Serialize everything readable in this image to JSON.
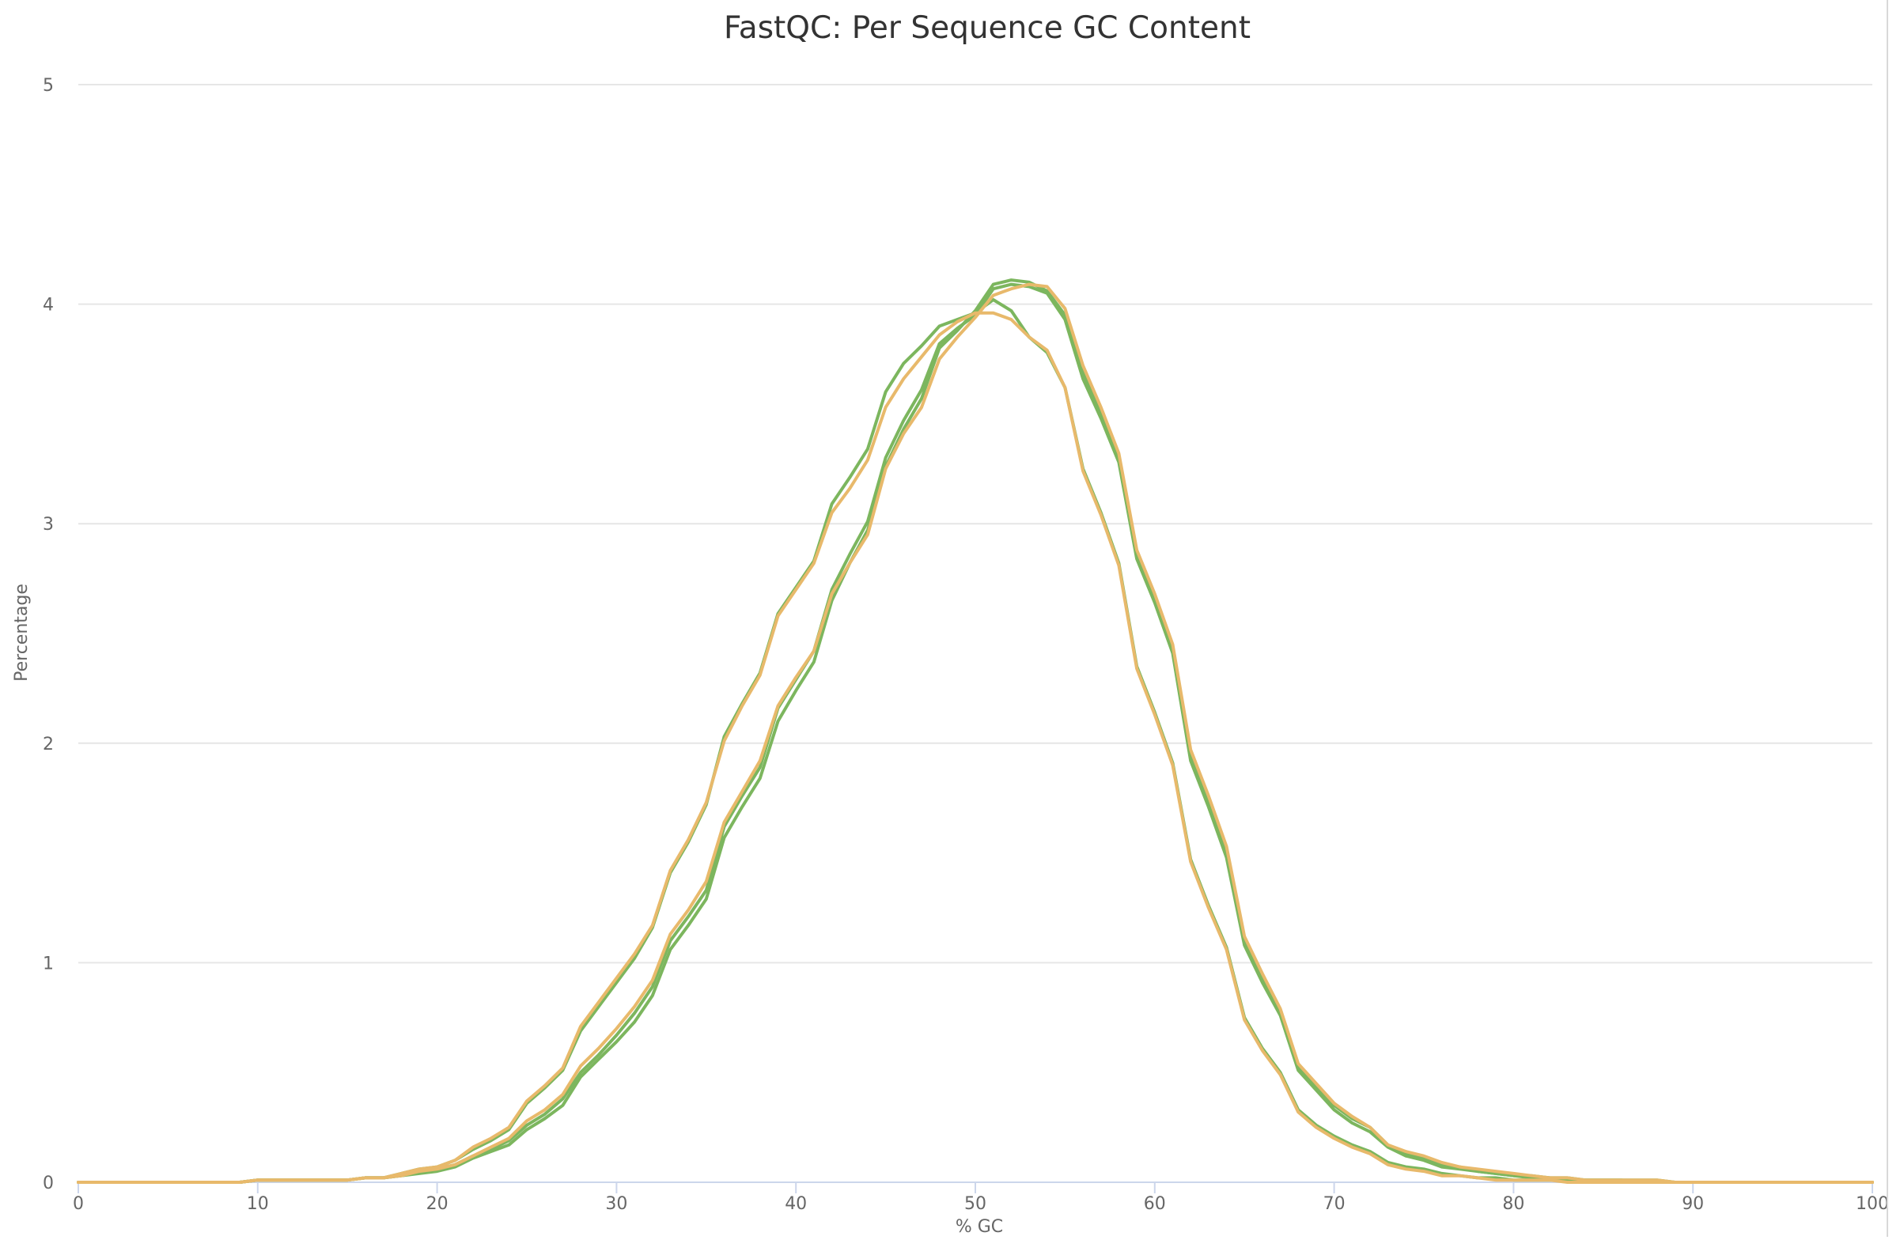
{
  "chart_data": {
    "type": "line",
    "title": "FastQC: Per Sequence GC Content",
    "xlabel": "% GC",
    "ylabel": "Percentage",
    "xlim": [
      0,
      100
    ],
    "ylim": [
      0,
      5
    ],
    "x_ticks": [
      0,
      10,
      20,
      30,
      40,
      50,
      60,
      70,
      80,
      90,
      100
    ],
    "y_ticks": [
      0,
      1,
      2,
      3,
      4,
      5
    ],
    "grid": true,
    "legend": "none",
    "x": [
      0,
      1,
      2,
      3,
      4,
      5,
      6,
      7,
      8,
      9,
      10,
      11,
      12,
      13,
      14,
      15,
      16,
      17,
      18,
      19,
      20,
      21,
      22,
      23,
      24,
      25,
      26,
      27,
      28,
      29,
      30,
      31,
      32,
      33,
      34,
      35,
      36,
      37,
      38,
      39,
      40,
      41,
      42,
      43,
      44,
      45,
      46,
      47,
      48,
      49,
      50,
      51,
      52,
      53,
      54,
      55,
      56,
      57,
      58,
      59,
      60,
      61,
      62,
      63,
      64,
      65,
      66,
      67,
      68,
      69,
      70,
      71,
      72,
      73,
      74,
      75,
      76,
      77,
      78,
      79,
      80,
      81,
      82,
      83,
      84,
      85,
      86,
      87,
      88,
      89,
      90,
      91,
      92,
      93,
      94,
      95,
      96,
      97,
      98,
      99,
      100
    ],
    "series": [
      {
        "color": "#7cb65e",
        "values": [
          0,
          0,
          0,
          0,
          0,
          0,
          0,
          0,
          0,
          0,
          0.01,
          0.01,
          0.01,
          0.01,
          0.01,
          0.01,
          0.02,
          0.02,
          0.03,
          0.04,
          0.05,
          0.07,
          0.11,
          0.14,
          0.17,
          0.24,
          0.29,
          0.35,
          0.48,
          0.56,
          0.64,
          0.73,
          0.85,
          1.06,
          1.17,
          1.29,
          1.57,
          1.71,
          1.84,
          2.1,
          2.24,
          2.37,
          2.65,
          2.82,
          2.97,
          3.26,
          3.43,
          3.57,
          3.8,
          3.88,
          3.97,
          4.09,
          4.11,
          4.1,
          4.06,
          3.95,
          3.69,
          3.51,
          3.31,
          2.87,
          2.67,
          2.44,
          1.95,
          1.74,
          1.51,
          1.1,
          0.93,
          0.78,
          0.53,
          0.44,
          0.35,
          0.29,
          0.25,
          0.17,
          0.13,
          0.11,
          0.08,
          0.07,
          0.05,
          0.04,
          0.03,
          0.03,
          0.02,
          0.02,
          0.01,
          0.01,
          0.01,
          0.01,
          0.01,
          0,
          0,
          0,
          0,
          0,
          0,
          0,
          0,
          0,
          0,
          0,
          0
        ]
      },
      {
        "color": "#7cb65e",
        "values": [
          0,
          0,
          0,
          0,
          0,
          0,
          0,
          0,
          0,
          0,
          0.01,
          0.01,
          0.01,
          0.01,
          0.01,
          0.01,
          0.02,
          0.02,
          0.03,
          0.05,
          0.06,
          0.08,
          0.12,
          0.15,
          0.19,
          0.26,
          0.31,
          0.38,
          0.5,
          0.58,
          0.67,
          0.77,
          0.89,
          1.1,
          1.21,
          1.33,
          1.62,
          1.76,
          1.89,
          2.16,
          2.29,
          2.42,
          2.7,
          2.86,
          3.01,
          3.3,
          3.47,
          3.61,
          3.82,
          3.89,
          3.95,
          4.07,
          4.09,
          4.08,
          4.05,
          3.93,
          3.66,
          3.48,
          3.28,
          2.84,
          2.64,
          2.41,
          1.92,
          1.71,
          1.48,
          1.08,
          0.91,
          0.76,
          0.51,
          0.42,
          0.33,
          0.27,
          0.23,
          0.16,
          0.12,
          0.1,
          0.07,
          0.06,
          0.05,
          0.04,
          0.03,
          0.02,
          0.02,
          0.01,
          0.01,
          0.01,
          0.01,
          0,
          0,
          0,
          0,
          0,
          0,
          0,
          0,
          0,
          0,
          0,
          0,
          0,
          0
        ]
      },
      {
        "color": "#7cb65e",
        "values": [
          0,
          0,
          0,
          0,
          0,
          0,
          0,
          0,
          0,
          0,
          0.01,
          0.01,
          0.01,
          0.01,
          0.01,
          0.01,
          0.02,
          0.02,
          0.04,
          0.06,
          0.07,
          0.1,
          0.15,
          0.19,
          0.24,
          0.36,
          0.43,
          0.51,
          0.69,
          0.8,
          0.91,
          1.02,
          1.16,
          1.41,
          1.55,
          1.72,
          2.03,
          2.18,
          2.32,
          2.59,
          2.71,
          2.83,
          3.09,
          3.21,
          3.34,
          3.6,
          3.73,
          3.81,
          3.9,
          3.93,
          3.96,
          4.02,
          3.97,
          3.85,
          3.78,
          3.62,
          3.25,
          3.05,
          2.82,
          2.35,
          2.14,
          1.91,
          1.47,
          1.26,
          1.07,
          0.75,
          0.61,
          0.5,
          0.33,
          0.26,
          0.21,
          0.17,
          0.14,
          0.09,
          0.07,
          0.06,
          0.04,
          0.03,
          0.02,
          0.02,
          0.01,
          0.01,
          0.01,
          0.01,
          0,
          0,
          0,
          0,
          0,
          0,
          0,
          0,
          0,
          0,
          0,
          0,
          0,
          0,
          0,
          0,
          0
        ]
      },
      {
        "color": "#e8b96b",
        "values": [
          0,
          0,
          0,
          0,
          0,
          0,
          0,
          0,
          0,
          0,
          0.01,
          0.01,
          0.01,
          0.01,
          0.01,
          0.01,
          0.02,
          0.02,
          0.04,
          0.06,
          0.07,
          0.1,
          0.16,
          0.2,
          0.25,
          0.37,
          0.44,
          0.52,
          0.71,
          0.82,
          0.93,
          1.04,
          1.17,
          1.42,
          1.56,
          1.73,
          2.01,
          2.17,
          2.31,
          2.58,
          2.7,
          2.82,
          3.05,
          3.16,
          3.29,
          3.53,
          3.66,
          3.76,
          3.86,
          3.92,
          3.96,
          3.96,
          3.93,
          3.85,
          3.79,
          3.62,
          3.24,
          3.04,
          2.81,
          2.34,
          2.13,
          1.9,
          1.46,
          1.25,
          1.06,
          0.74,
          0.6,
          0.49,
          0.32,
          0.25,
          0.2,
          0.16,
          0.13,
          0.08,
          0.06,
          0.05,
          0.03,
          0.03,
          0.02,
          0.01,
          0.01,
          0.01,
          0.01,
          0,
          0,
          0,
          0,
          0,
          0,
          0,
          0,
          0,
          0,
          0,
          0,
          0,
          0,
          0,
          0,
          0,
          0
        ]
      },
      {
        "color": "#e8b96b",
        "values": [
          0,
          0,
          0,
          0,
          0,
          0,
          0,
          0,
          0,
          0,
          0.01,
          0.01,
          0.01,
          0.01,
          0.01,
          0.01,
          0.02,
          0.02,
          0.03,
          0.05,
          0.06,
          0.08,
          0.12,
          0.16,
          0.2,
          0.28,
          0.33,
          0.4,
          0.53,
          0.61,
          0.7,
          0.8,
          0.92,
          1.13,
          1.24,
          1.37,
          1.64,
          1.78,
          1.92,
          2.17,
          2.3,
          2.42,
          2.68,
          2.82,
          2.95,
          3.25,
          3.41,
          3.53,
          3.75,
          3.85,
          3.94,
          4.04,
          4.07,
          4.09,
          4.08,
          3.98,
          3.72,
          3.53,
          3.32,
          2.88,
          2.68,
          2.45,
          1.97,
          1.76,
          1.53,
          1.12,
          0.95,
          0.79,
          0.54,
          0.45,
          0.36,
          0.3,
          0.25,
          0.17,
          0.14,
          0.12,
          0.09,
          0.07,
          0.06,
          0.05,
          0.04,
          0.03,
          0.02,
          0.02,
          0.01,
          0.01,
          0.01,
          0.01,
          0.01,
          0,
          0,
          0,
          0,
          0,
          0,
          0,
          0,
          0,
          0,
          0,
          0
        ]
      }
    ]
  }
}
